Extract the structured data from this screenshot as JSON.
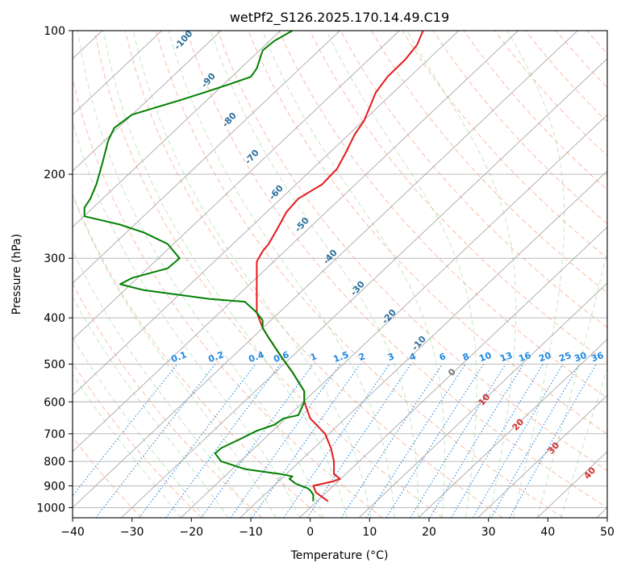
{
  "chart_data": {
    "type": "line",
    "title": "wetPf2_S126.2025.170.14.49.C19",
    "xlabel": "Temperature (°C)",
    "ylabel": "Pressure (hPa)",
    "xlim": [
      -40,
      50
    ],
    "ylim": [
      1050,
      100
    ],
    "y_scale": "log",
    "x_ticks": [
      -40,
      -30,
      -20,
      -10,
      0,
      10,
      20,
      30,
      40,
      50
    ],
    "x_tick_labels": [
      "−40",
      "−30",
      "−20",
      "−10",
      "0",
      "10",
      "20",
      "30",
      "40",
      "50"
    ],
    "y_ticks": [
      100,
      200,
      300,
      400,
      500,
      600,
      700,
      800,
      900,
      1000
    ],
    "y_tick_labels": [
      "100",
      "200",
      "300",
      "400",
      "500",
      "600",
      "700",
      "800",
      "900",
      "1000"
    ],
    "grid": true,
    "isotherm_skew_deg_per_log10": 85,
    "dry_adiabat_labels": [
      "-100",
      "-90",
      "-80",
      "-70",
      "-60",
      "-50",
      "-40",
      "-30",
      "-20",
      "-10"
    ],
    "moist_adiabat_labels": [
      "0",
      "10",
      "20",
      "30",
      "40"
    ],
    "mixing_ratio_labels": [
      "0.1",
      "0.2",
      "0.4",
      "0.6",
      "1",
      "1.5",
      "2",
      "3",
      "4",
      "6",
      "8",
      "10",
      "13",
      "16",
      "20",
      "25",
      "30",
      "36"
    ],
    "series": [
      {
        "color": "#e31a1c",
        "points": [
          [
            3,
            970
          ],
          [
            1,
            930
          ],
          [
            0.5,
            900
          ],
          [
            4,
            880
          ],
          [
            5,
            870
          ],
          [
            4,
            850
          ],
          [
            4,
            800
          ],
          [
            3.5,
            750
          ],
          [
            2.5,
            700
          ],
          [
            0,
            650
          ],
          [
            -1,
            600
          ],
          [
            -1,
            570
          ],
          [
            -3,
            520
          ],
          [
            -5,
            480
          ],
          [
            -7,
            440
          ],
          [
            -8,
            420
          ],
          [
            -9,
            390
          ],
          [
            -9,
            360
          ],
          [
            -9,
            330
          ],
          [
            -9,
            305
          ],
          [
            -8,
            290
          ],
          [
            -7,
            280
          ],
          [
            -5.5,
            260
          ],
          [
            -4,
            240
          ],
          [
            -2,
            225
          ],
          [
            2,
            210
          ],
          [
            4.5,
            195
          ],
          [
            6,
            180
          ],
          [
            7.5,
            165
          ],
          [
            9,
            155
          ],
          [
            10,
            145
          ],
          [
            11,
            135
          ],
          [
            13,
            125
          ],
          [
            16,
            115
          ],
          [
            18,
            107
          ],
          [
            19,
            100
          ]
        ]
      },
      {
        "color": "#008000",
        "points": [
          [
            0.5,
            970
          ],
          [
            0.5,
            940
          ],
          [
            0,
            920
          ],
          [
            -0.5,
            910
          ],
          [
            -1.5,
            900
          ],
          [
            -2.5,
            890
          ],
          [
            -3.5,
            870
          ],
          [
            -3,
            860
          ],
          [
            -5,
            850
          ],
          [
            -8,
            840
          ],
          [
            -11,
            830
          ],
          [
            -15,
            800
          ],
          [
            -16,
            770
          ],
          [
            -15,
            750
          ],
          [
            -12,
            720
          ],
          [
            -9,
            690
          ],
          [
            -6,
            670
          ],
          [
            -4.5,
            650
          ],
          [
            -2,
            640
          ],
          [
            -1.5,
            620
          ],
          [
            -1,
            600
          ],
          [
            -1,
            570
          ],
          [
            -3,
            520
          ],
          [
            -5,
            480
          ],
          [
            -7,
            440
          ],
          [
            -8,
            420
          ],
          [
            -8,
            405
          ],
          [
            -9,
            390
          ],
          [
            -10,
            380
          ],
          [
            -11,
            370
          ],
          [
            -17,
            365
          ],
          [
            -28,
            350
          ],
          [
            -32,
            340
          ],
          [
            -30,
            330
          ],
          [
            -24,
            315
          ],
          [
            -22,
            300
          ],
          [
            -24,
            280
          ],
          [
            -28,
            265
          ],
          [
            -32,
            255
          ],
          [
            -38,
            245
          ],
          [
            -38,
            235
          ],
          [
            -37,
            225
          ],
          [
            -36,
            210
          ],
          [
            -35,
            190
          ],
          [
            -34,
            170
          ],
          [
            -33,
            160
          ],
          [
            -30,
            150
          ],
          [
            -22,
            140
          ],
          [
            -18,
            135
          ],
          [
            -14,
            130
          ],
          [
            -10,
            125
          ],
          [
            -9,
            120
          ],
          [
            -8,
            110
          ],
          [
            -6,
            105
          ],
          [
            -3,
            100
          ]
        ]
      }
    ]
  }
}
